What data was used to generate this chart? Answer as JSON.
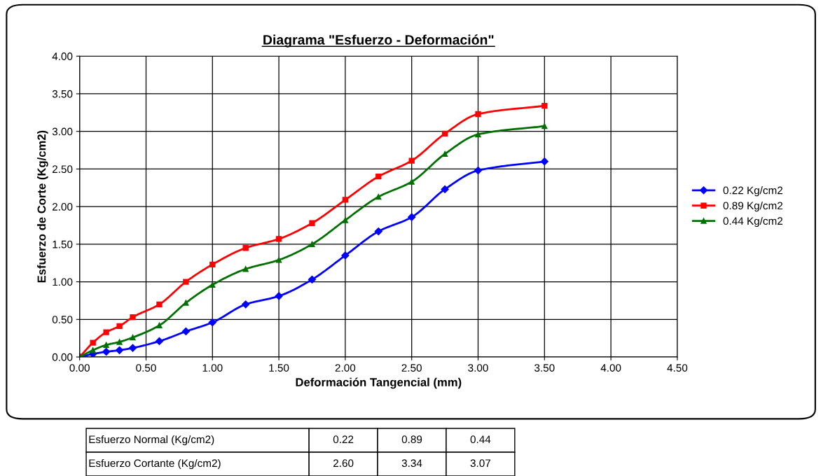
{
  "chart_data": {
    "type": "line",
    "title": "Diagrama \"Esfuerzo - Deformación\"",
    "xlabel": "Deformación Tangencial (mm)",
    "ylabel": "Esfuerzo de Corte (Kg/cm2)",
    "x": [
      0,
      0.1,
      0.2,
      0.3,
      0.4,
      0.6,
      0.8,
      1.0,
      1.25,
      1.5,
      1.75,
      2.0,
      2.25,
      2.5,
      2.75,
      3.0,
      3.5
    ],
    "series": [
      {
        "name": "0.22 Kg/cm2",
        "color": "#0000ff",
        "marker": "diamond",
        "values": [
          0,
          0.04,
          0.07,
          0.09,
          0.12,
          0.21,
          0.34,
          0.46,
          0.7,
          0.81,
          1.03,
          1.35,
          1.67,
          1.86,
          2.23,
          2.48,
          2.6
        ]
      },
      {
        "name": "0.89 Kg/cm2",
        "color": "#ff0000",
        "marker": "square",
        "values": [
          0,
          0.19,
          0.33,
          0.41,
          0.53,
          0.7,
          1.0,
          1.23,
          1.45,
          1.57,
          1.78,
          2.09,
          2.4,
          2.61,
          2.97,
          3.23,
          3.34
        ]
      },
      {
        "name": "0.44 Kg/cm2",
        "color": "#007000",
        "marker": "triangle",
        "values": [
          0,
          0.09,
          0.16,
          0.2,
          0.26,
          0.42,
          0.72,
          0.96,
          1.17,
          1.29,
          1.5,
          1.82,
          2.13,
          2.33,
          2.7,
          2.96,
          3.07
        ]
      }
    ],
    "xlim": [
      0,
      4.5
    ],
    "ylim": [
      0,
      4.0
    ],
    "xticks": [
      {
        "value": 0,
        "label": "0.00"
      },
      {
        "value": 0.5,
        "label": "0.50"
      },
      {
        "value": 1,
        "label": "1.00"
      },
      {
        "value": 1.5,
        "label": "1.50"
      },
      {
        "value": 2,
        "label": "2.00"
      },
      {
        "value": 2.5,
        "label": "2.50"
      },
      {
        "value": 3,
        "label": "3.00"
      },
      {
        "value": 3.5,
        "label": "3.50"
      },
      {
        "value": 4,
        "label": "4.00"
      },
      {
        "value": 4.5,
        "label": "4.50"
      }
    ],
    "yticks": [
      {
        "value": 0,
        "label": "0.00"
      },
      {
        "value": 0.5,
        "label": "0.50"
      },
      {
        "value": 1,
        "label": "1.00"
      },
      {
        "value": 1.5,
        "label": "1.50"
      },
      {
        "value": 2,
        "label": "2.00"
      },
      {
        "value": 2.5,
        "label": "2.50"
      },
      {
        "value": 3,
        "label": "3.00"
      },
      {
        "value": 3.5,
        "label": "3.50"
      },
      {
        "value": 4,
        "label": "4.00"
      }
    ],
    "grid": true,
    "legend": "right",
    "line_style": "solid",
    "annotations": [
      "Esfuerzo Normal (Kg/cm2)",
      "0.22",
      "0.89",
      "0.44",
      "Esfuerzo Cortante (Kg/cm2)",
      "2.60",
      "3.34",
      "3.07"
    ]
  }
}
